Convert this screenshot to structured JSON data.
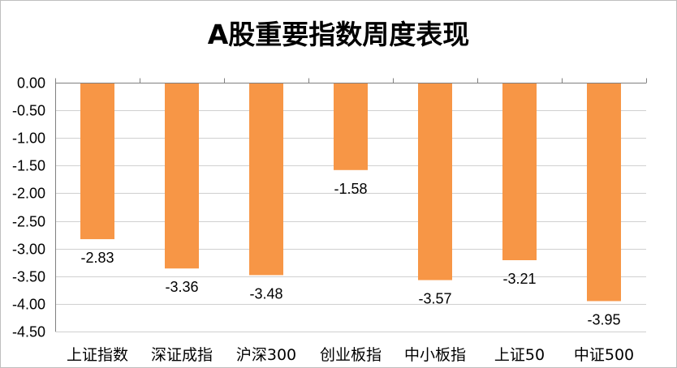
{
  "chart_data": {
    "type": "bar",
    "title": "A股重要指数周度表现",
    "categories": [
      "上证指数",
      "深证成指",
      "沪深300",
      "创业板指",
      "中小板指",
      "上证50",
      "中证500"
    ],
    "series": [
      {
        "values": [
          -2.83,
          -3.36,
          -3.48,
          -1.58,
          -3.57,
          -3.21,
          -3.95
        ]
      }
    ],
    "data_labels": [
      "-2.83",
      "-3.36",
      "-3.48",
      "-1.58",
      "-3.57",
      "-3.21",
      "-3.95"
    ],
    "ylim": [
      -4.5,
      0
    ],
    "y_ticks": [
      0,
      -0.5,
      -1,
      -1.5,
      -2,
      -2.5,
      -3,
      -3.5,
      -4,
      -4.5
    ],
    "y_tick_labels": [
      "0.00",
      "-0.50",
      "-1.00",
      "-1.50",
      "-2.00",
      "-2.50",
      "-3.00",
      "-3.50",
      "-4.00",
      "-4.50"
    ],
    "xlabel": "",
    "ylabel": "",
    "grid": true,
    "legend": "none",
    "bar_color": "#f79646"
  }
}
